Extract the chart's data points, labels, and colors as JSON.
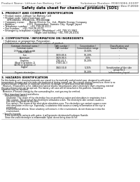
{
  "bg_color": "#ffffff",
  "header_left": "Product Name: Lithium Ion Battery Cell",
  "header_right_line1": "Substance Number: M38190E6-XXXFP",
  "header_right_line2": "Established / Revision: Dec.7.2010",
  "title": "Safety data sheet for chemical products (SDS)",
  "section1_title": "1. PRODUCT AND COMPANY IDENTIFICATION",
  "section1_lines": [
    "  • Product name: Lithium Ion Battery Cell",
    "  • Product code: Cylindrical-type cell",
    "       (IFR18650U, IFR18650L, IFR18650A)",
    "  • Company name:      Benzo Electric Co., Ltd., Mobile Energy Company",
    "  • Address:               2/2/1  Kannondani, Sumoto City, Hyogo, Japan",
    "  • Telephone number:   +81-799-20-4111",
    "  • Fax number:   +81-799-26-4123",
    "  • Emergency telephone number (Weekdays) +81-799-20-3962",
    "                                          (Night and holiday) +81-799-26-4101"
  ],
  "section2_title": "2. COMPOSITION / INFORMATION ON INGREDIENTS",
  "section2_intro": "  • Substance or preparation: Preparation",
  "section2_sub": "  • Information about the chemical nature of product:",
  "col_headers_row1": [
    "Common chemical name /",
    "CAS number /",
    "Concentration /",
    "Classification and"
  ],
  "col_headers_row2": [
    "Common name",
    "CAS number",
    "Concentration range",
    "hazard labeling"
  ],
  "table_rows": [
    [
      "Lithium cobalt oxide\n(LiMnCoNiO2)",
      "-",
      "30-50%",
      "-"
    ],
    [
      "Iron",
      "7439-89-6",
      "10-20%",
      "-"
    ],
    [
      "Aluminum",
      "7429-90-5",
      "2-5%",
      "-"
    ],
    [
      "Graphite\n(Bind in graphite-1)\n(Al-Mn in graphite-1)",
      "7782-42-5\n17440-44-7",
      "10-20%",
      "-"
    ],
    [
      "Copper",
      "7440-50-8",
      "5-15%",
      "Sensitization of the skin\ngroup No.2"
    ],
    [
      "Organic electrolyte",
      "-",
      "10-20%",
      "Inflammatory liquid"
    ]
  ],
  "section3_title": "3. HAZARDS IDENTIFICATION",
  "section3_para1": [
    "For this battery cell, chemical materials are stored in a hermetically sealed metal case, designed to withstand",
    "temperature changes and electrode-electrochemical during normal use. As a result, during normal use, there is no",
    "physical danger of ignition or explosion and there no danger of hazardous materials leakage.",
    "  However, if exposed to a fire, added mechanical shocks, decomposed, when electrolyte short-circuiting, internal",
    "the gas release vent can be opened. The battery cell case will be breached or fire-patterns, hazardous",
    "materials may be released.",
    "  Moreover, if heated strongly by the surrounding fire, soot gas may be emitted."
  ],
  "section3_bullet1_title": "  • Most important hazard and effects:",
  "section3_human": "      Human health effects:",
  "section3_human_lines": [
    "        Inhalation: The steam of the electrolyte has an anesthesia action and stimulates in respiratory tract.",
    "        Skin contact: The steam of the electrolyte stimulates a skin. The electrolyte skin contact causes a",
    "        sore and stimulation on the skin.",
    "        Eye contact: The steam of the electrolyte stimulates eyes. The electrolyte eye contact causes a sore",
    "        and stimulation on the eye. Especially, a substance that causes a strong inflammation of the eye is",
    "        contained.",
    "        Environmental effects: Since a battery cell remains in the environment, do not throw out it into the",
    "        environment."
  ],
  "section3_bullet2_title": "  • Specific hazards:",
  "section3_specific": [
    "      If the electrolyte contacts with water, it will generate detrimental hydrogen fluoride.",
    "      Since the used electrolyte is inflammable liquid, do not bring close to fire."
  ]
}
